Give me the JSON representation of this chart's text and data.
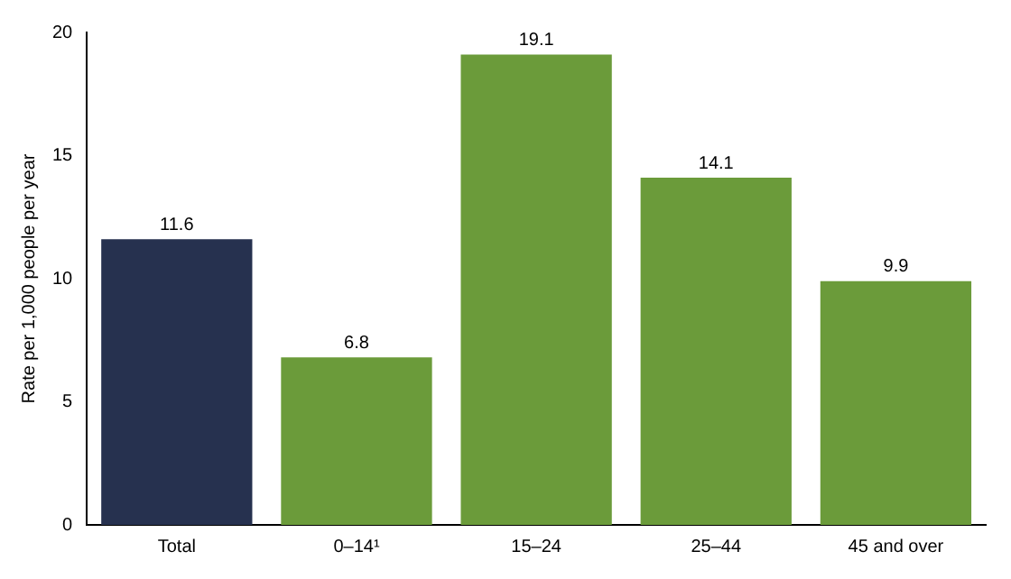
{
  "chart_data": {
    "type": "bar",
    "ylabel": "Rate per 1,000 people per year",
    "categories": [
      "Total",
      "0–14¹",
      "15–24",
      "25–44",
      "45 and over"
    ],
    "values": [
      11.6,
      6.8,
      19.1,
      14.1,
      9.9
    ],
    "colors": [
      "#26314f",
      "#6b9b3a",
      "#6b9b3a",
      "#6b9b3a",
      "#6b9b3a"
    ],
    "ylim": [
      0,
      20
    ],
    "yticks": [
      0,
      5,
      10,
      15,
      20
    ],
    "grid": false,
    "legend": false,
    "data_labels": true
  }
}
